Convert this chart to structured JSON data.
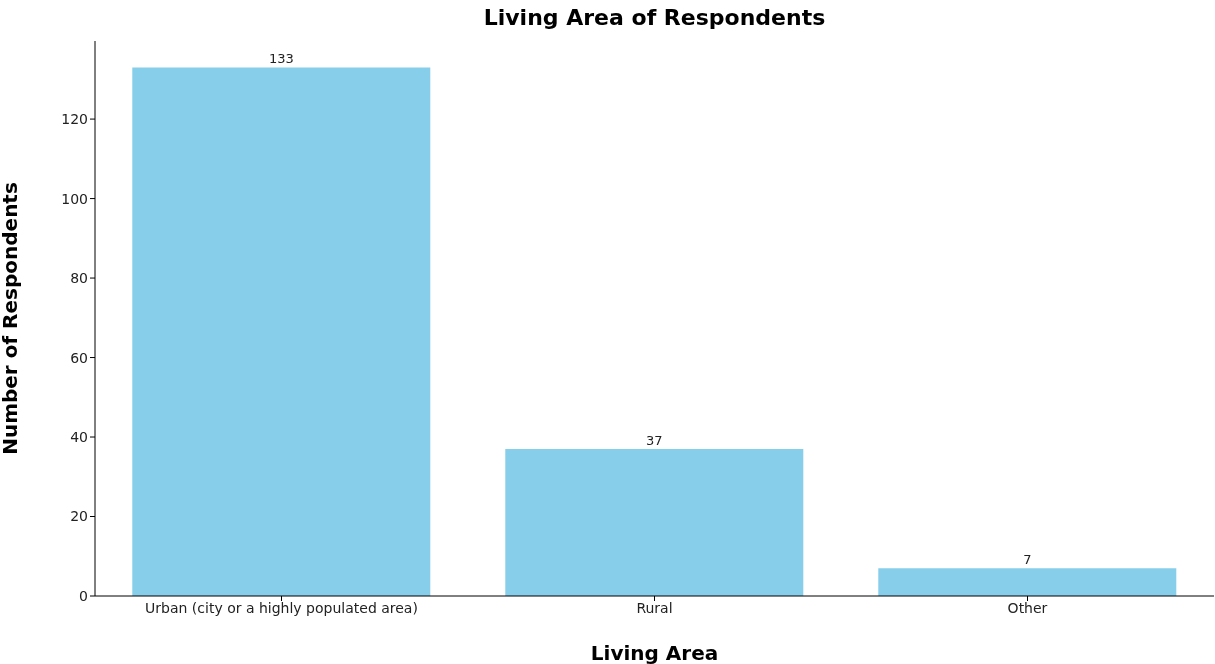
{
  "chart_data": {
    "type": "bar",
    "title": "Living Area of Respondents",
    "xlabel": "Living Area",
    "ylabel": "Number of Respondents",
    "categories": [
      "Urban (city or a highly populated area)",
      "Rural",
      "Other"
    ],
    "values": [
      133,
      37,
      7
    ],
    "color": "#87ceeb",
    "ylim": [
      0,
      139.65
    ],
    "yticks": [
      0,
      20,
      40,
      60,
      80,
      100,
      120
    ],
    "grid": false,
    "data_labels": true
  }
}
